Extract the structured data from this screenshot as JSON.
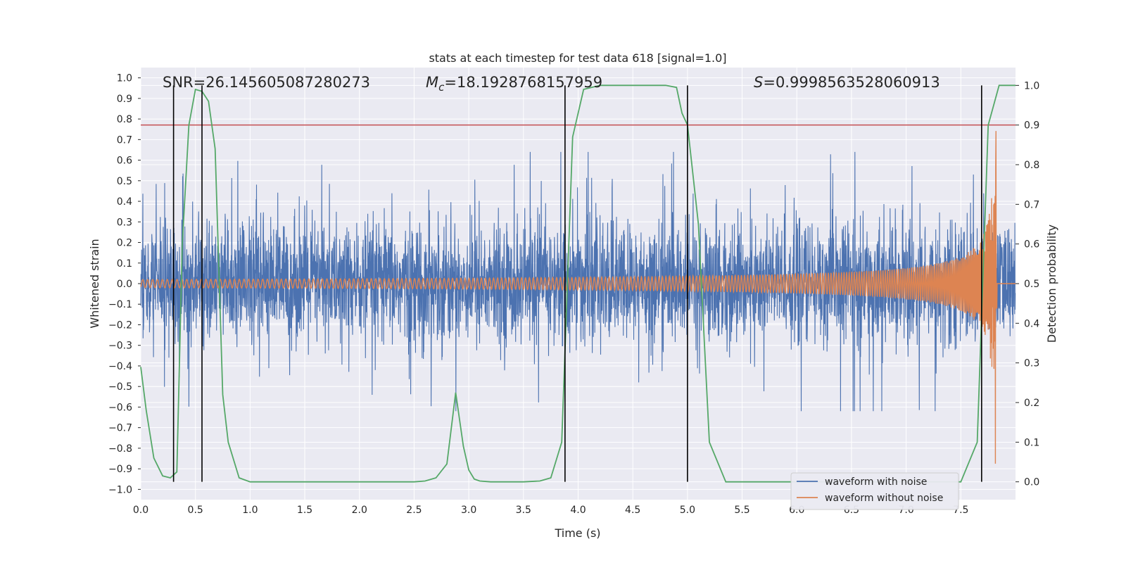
{
  "chart_data": {
    "type": "line",
    "title": "stats at each timestep for test data 618 [signal=1.0]",
    "xlabel": "Time (s)",
    "ylabel": "Whitened strain",
    "y2label": "Detection probability",
    "xlim": [
      0,
      8.0
    ],
    "ylim": [
      -1.05,
      1.05
    ],
    "y2lim": [
      -0.045,
      1.045
    ],
    "xticks": [
      "0.0",
      "0.5",
      "1.0",
      "1.5",
      "2.0",
      "2.5",
      "3.0",
      "3.5",
      "4.0",
      "4.5",
      "5.0",
      "5.5",
      "6.0",
      "6.5",
      "7.0",
      "7.5"
    ],
    "yticks": [
      "1.0",
      "0.9",
      "0.8",
      "0.7",
      "0.6",
      "0.5",
      "0.4",
      "0.3",
      "0.2",
      "0.1",
      "0.0",
      "−0.1",
      "−0.2",
      "−0.3",
      "−0.4",
      "−0.5",
      "−0.6",
      "−0.7",
      "−0.8",
      "−0.9",
      "−1.0"
    ],
    "y2ticks": [
      "0.0",
      "0.1",
      "0.2",
      "0.3",
      "0.4",
      "0.5",
      "0.6",
      "0.7",
      "0.8",
      "0.9",
      "1.0"
    ],
    "grid": true,
    "legend_position": "bottom-right",
    "annotations": {
      "snr": "SNR=26.145605087280273",
      "mc_sym": "M",
      "mc_sub": "c",
      "mc_val": "=18.1928768157959",
      "s_sym": "S",
      "s_val": "=0.9998563528060913"
    },
    "series": [
      {
        "name": "waveform with noise",
        "axis": "left",
        "color": "#4c72b0",
        "description_of_shape": "dense noise envelope",
        "envelope_typical": [
          -0.22,
          0.22
        ],
        "envelope_extremes": [
          -0.62,
          0.64
        ]
      },
      {
        "name": "waveform without noise",
        "axis": "left",
        "color": "#dd8452",
        "merger_time": 7.83,
        "amplitude_start": 0.02,
        "amplitude_peak": 0.95
      },
      {
        "name": "detection probability",
        "axis": "right",
        "color": "#55a868",
        "x": [
          0.0,
          0.05,
          0.12,
          0.2,
          0.27,
          0.33,
          0.38,
          0.44,
          0.5,
          0.56,
          0.62,
          0.68,
          0.75,
          0.8,
          0.9,
          1.0,
          1.5,
          2.0,
          2.5,
          2.6,
          2.7,
          2.8,
          2.88,
          2.95,
          3.0,
          3.05,
          3.1,
          3.2,
          3.5,
          3.65,
          3.75,
          3.85,
          3.95,
          4.05,
          4.2,
          4.5,
          4.8,
          4.9,
          4.95,
          5.0,
          5.1,
          5.2,
          5.35,
          6.0,
          7.0,
          7.5,
          7.65,
          7.75,
          7.85,
          8.0
        ],
        "y": [
          0.29,
          0.18,
          0.06,
          0.015,
          0.01,
          0.025,
          0.6,
          0.9,
          0.99,
          0.985,
          0.96,
          0.84,
          0.22,
          0.1,
          0.01,
          0.0,
          0.0,
          0.0,
          0.0,
          0.002,
          0.01,
          0.045,
          0.225,
          0.09,
          0.03,
          0.007,
          0.002,
          0.0,
          0.0,
          0.002,
          0.01,
          0.1,
          0.87,
          0.99,
          1.0,
          1.0,
          1.0,
          0.995,
          0.93,
          0.9,
          0.65,
          0.1,
          0.0,
          0.0,
          0.0,
          0.0,
          0.1,
          0.9,
          1.0,
          1.0
        ]
      },
      {
        "name": "threshold",
        "axis": "right",
        "color": "#c44e52",
        "y": 0.9
      }
    ],
    "vertical_markers": [
      0.3,
      0.56,
      3.88,
      5.0,
      7.69
    ],
    "legend": [
      "waveform with noise",
      "waveform without noise"
    ]
  }
}
